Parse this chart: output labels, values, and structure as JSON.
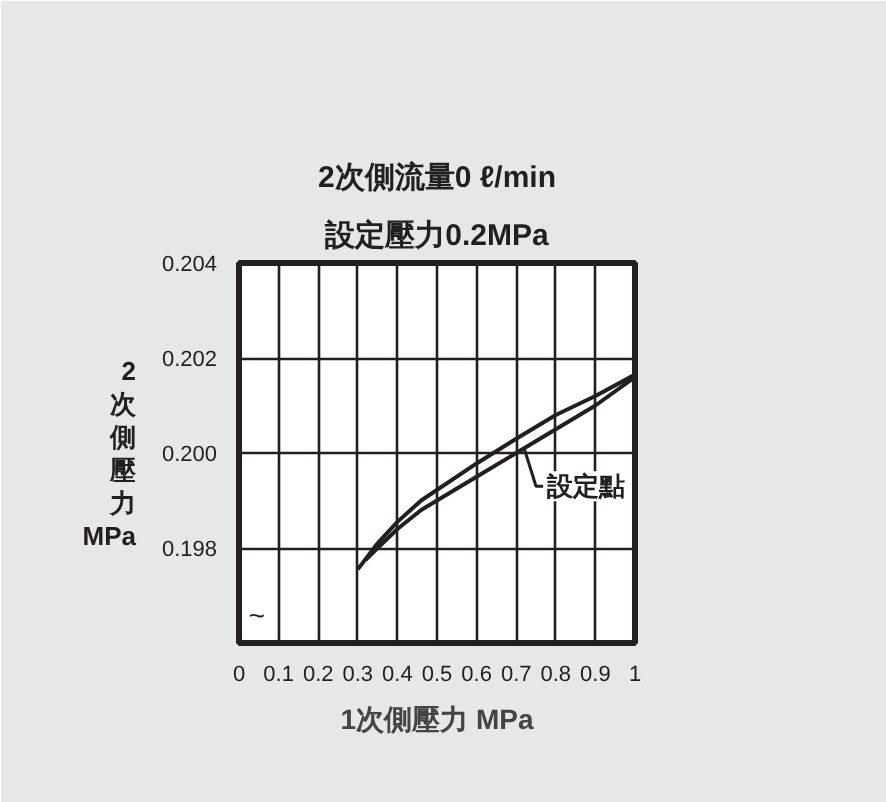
{
  "chart_data": {
    "type": "line",
    "title": "2次側流量0 ℓ/min",
    "subtitle": "設定壓力0.2MPa",
    "xlabel": "1次側壓力 MPa",
    "ylabel": "2次側壓力 MPa",
    "x": [
      0.3,
      0.35,
      0.4,
      0.46,
      0.6,
      0.7,
      0.8,
      0.9,
      1.0
    ],
    "series": [
      {
        "color": "#231f20",
        "values": [
          0.19755,
          0.1981,
          0.19855,
          0.199,
          0.19978,
          0.2003,
          0.2008,
          0.2012,
          0.20165
        ]
      },
      {
        "color": "#231f20",
        "x": [
          0.32,
          0.35,
          0.4,
          0.46,
          0.6,
          0.7,
          0.8,
          0.9,
          1.0
        ],
        "values": [
          0.19775,
          0.198,
          0.1984,
          0.1988,
          0.1995,
          0.2,
          0.2005,
          0.201,
          0.2016
        ]
      }
    ],
    "xlim": [
      0,
      1
    ],
    "xticks": [
      0,
      0.1,
      0.2,
      0.3,
      0.4,
      0.5,
      0.6,
      0.7,
      0.8,
      0.9,
      1
    ],
    "ylim": [
      0.196,
      0.204
    ],
    "yticks": [
      0.198,
      {
        "value": 0.2,
        "label": "0.200"
      },
      0.202,
      0.204
    ],
    "annotations": [
      {
        "text": "設定點",
        "x": 0.72,
        "y": 0.2001
      },
      "~"
    ],
    "grid": true,
    "line_style": "solid",
    "marker": "none"
  }
}
